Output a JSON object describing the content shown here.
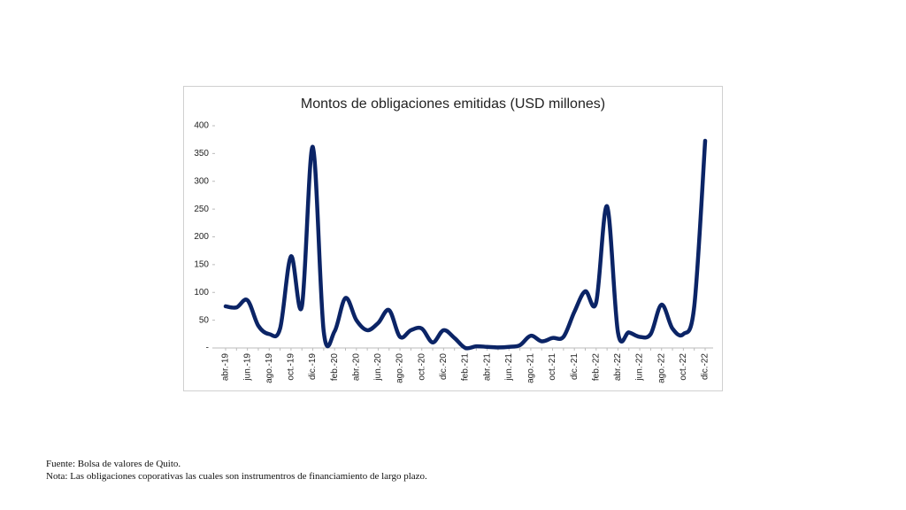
{
  "chart_data": {
    "type": "line",
    "title": "Montos de obligaciones emitidas (USD millones)",
    "categories": [
      "abr.-19",
      null,
      "jun.-19",
      null,
      "ago.-19",
      null,
      "oct.-19",
      null,
      "dic.-19",
      null,
      "feb.-20",
      null,
      "abr.-20",
      null,
      "jun.-20",
      null,
      "ago.-20",
      null,
      "oct.-20",
      null,
      "dic.-20",
      null,
      "feb.-21",
      null,
      "abr.-21",
      null,
      "jun.-21",
      null,
      "ago.-21",
      null,
      "oct.-21",
      null,
      "dic.-21",
      null,
      "feb.-22",
      null,
      "abr.-22",
      null,
      "jun.-22",
      null,
      "ago.-22",
      null,
      "oct.-22",
      null,
      "dic.-22"
    ],
    "series": [
      {
        "name": "Montos",
        "color": "#0b2466",
        "values": [
          75,
          73,
          86,
          40,
          25,
          35,
          165,
          75,
          362,
          30,
          30,
          90,
          50,
          32,
          45,
          68,
          20,
          32,
          35,
          10,
          32,
          18,
          0,
          3,
          2,
          1,
          2,
          5,
          22,
          12,
          18,
          20,
          65,
          102,
          82,
          255,
          28,
          28,
          20,
          25,
          78,
          35,
          25,
          75,
          373
        ]
      }
    ],
    "ylim": [
      0,
      400
    ],
    "yticks": [
      {
        "value": 0,
        "label": "-"
      },
      50,
      100,
      150,
      200,
      250,
      300,
      350,
      400
    ]
  },
  "notes": [
    "Fuente: Bolsa de valores de Quito.",
    "Nota: Las obligaciones coporativas las cuales son instrumentros de financiamiento de largo plazo."
  ]
}
